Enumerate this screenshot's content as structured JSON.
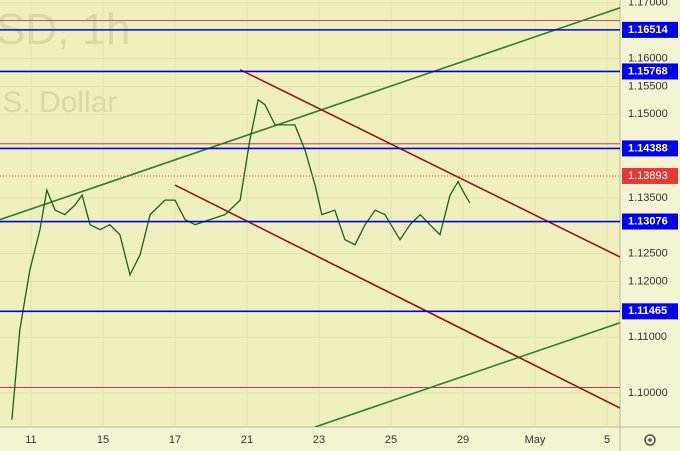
{
  "chart_data": {
    "type": "line",
    "watermark_symbol": "SD, 1h",
    "watermark_name": ".S. Dollar",
    "x": [
      -0.53,
      -0.31,
      -0.03,
      0.25,
      0.44,
      0.67,
      0.94,
      1.22,
      1.42,
      1.64,
      1.92,
      2.19,
      2.47,
      2.75,
      3.03,
      3.31,
      3.72,
      4.0,
      4.28,
      4.56,
      4.97,
      5.39,
      5.81,
      6.08,
      6.31,
      6.5,
      6.78,
      7.06,
      7.33,
      7.61,
      7.89,
      8.08,
      8.44,
      8.72,
      9.0,
      9.28,
      9.56,
      9.83,
      10.25,
      10.53,
      10.81,
      11.08,
      11.36,
      11.64,
      11.86,
      12.06,
      12.19
    ],
    "values": [
      1.0952,
      1.1113,
      1.1221,
      1.1293,
      1.1364,
      1.1328,
      1.132,
      1.1337,
      1.1355,
      1.1302,
      1.1293,
      1.1302,
      1.1284,
      1.1212,
      1.1248,
      1.132,
      1.1346,
      1.1346,
      1.1311,
      1.1302,
      1.1311,
      1.132,
      1.1346,
      1.1454,
      1.1526,
      1.1517,
      1.1481,
      1.1481,
      1.1481,
      1.1436,
      1.1373,
      1.132,
      1.1328,
      1.1275,
      1.1266,
      1.1302,
      1.1328,
      1.132,
      1.1275,
      1.1302,
      1.132,
      1.1302,
      1.1284,
      1.1355,
      1.1379,
      1.1355,
      1.1341
    ],
    "color": "#1b5e20",
    "xlim": [
      -0.86,
      16.36
    ],
    "ylim": [
      1.0939,
      1.1705
    ],
    "xticks": [
      {
        "value": 0,
        "label": "11"
      },
      {
        "value": 2,
        "label": "15"
      },
      {
        "value": 4,
        "label": "17"
      },
      {
        "value": 6,
        "label": "21"
      },
      {
        "value": 8,
        "label": "23"
      },
      {
        "value": 10,
        "label": "25"
      },
      {
        "value": 12,
        "label": "29"
      },
      {
        "value": 14,
        "label": "May"
      },
      {
        "value": 16,
        "label": "5"
      }
    ],
    "yticks": [
      {
        "value": 1.17,
        "label": "1.17000"
      },
      {
        "value": 1.16,
        "label": "1.16000"
      },
      {
        "value": 1.155,
        "label": "1.15500"
      },
      {
        "value": 1.15,
        "label": "1.15000"
      },
      {
        "value": 1.135,
        "label": "1.13500"
      },
      {
        "value": 1.125,
        "label": "1.12500"
      },
      {
        "value": 1.12,
        "label": "1.12000"
      },
      {
        "value": 1.11,
        "label": "1.11000"
      },
      {
        "value": 1.1,
        "label": "1.10000"
      }
    ],
    "levels": [
      {
        "value": 1.16514,
        "color": "#0000ee"
      },
      {
        "value": 1.15768,
        "color": "#0000ee"
      },
      {
        "value": 1.14388,
        "color": "#0000ee"
      },
      {
        "value": 1.13076,
        "color": "#0000ee"
      },
      {
        "value": 1.11465,
        "color": "#0000ee"
      }
    ],
    "thin_levels": {
      "values": [
        1.1668,
        1.1447,
        1.101
      ],
      "color": "#c2185b"
    },
    "last_price": {
      "value": 1.13893,
      "color": "#e53935"
    },
    "trendlines": [
      {
        "x": [
          -0.86,
          16.36
        ],
        "y": [
          1.1311,
          1.1691
        ],
        "color": "#2e7d32"
      },
      {
        "x": [
          7.89,
          16.36
        ],
        "y": [
          1.0939,
          1.1126
        ],
        "color": "#2e7d32"
      },
      {
        "x": [
          5.81,
          16.36
        ],
        "y": [
          1.158,
          1.1244
        ],
        "color": "#8b1a1a"
      },
      {
        "x": [
          4.0,
          16.36
        ],
        "y": [
          1.1373,
          1.0973
        ],
        "color": "#8b1a1a"
      }
    ]
  }
}
